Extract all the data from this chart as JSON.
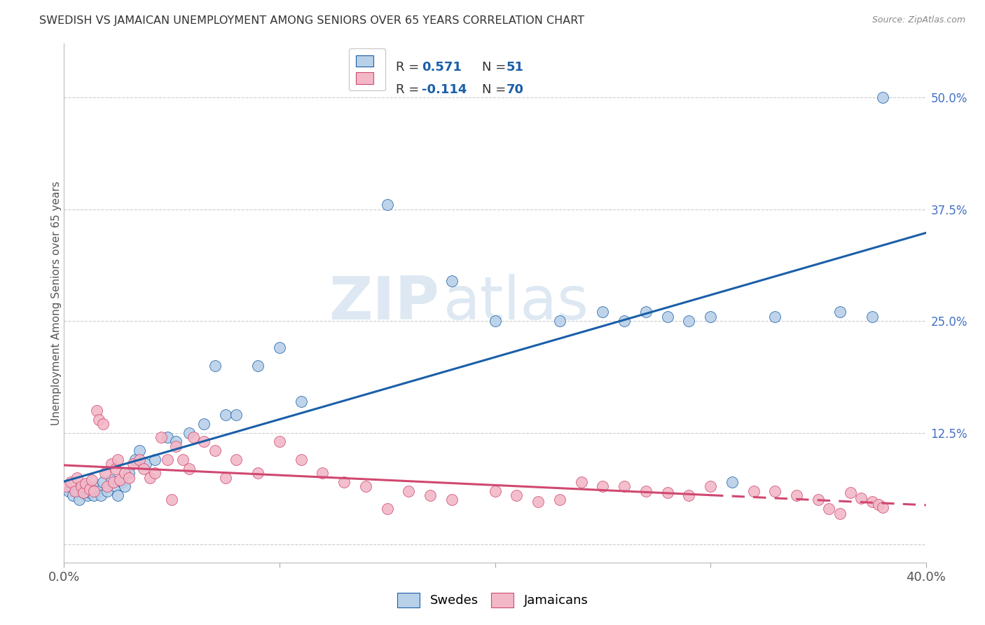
{
  "title": "SWEDISH VS JAMAICAN UNEMPLOYMENT AMONG SENIORS OVER 65 YEARS CORRELATION CHART",
  "source": "Source: ZipAtlas.com",
  "ylabel": "Unemployment Among Seniors over 65 years",
  "xlim": [
    0,
    0.4
  ],
  "ylim": [
    -0.02,
    0.56
  ],
  "right_ytick_vals": [
    0.0,
    0.125,
    0.25,
    0.375,
    0.5
  ],
  "right_yticklabels": [
    "",
    "12.5%",
    "25.0%",
    "37.5%",
    "50.0%"
  ],
  "legend_r_blue": "0.571",
  "legend_n_blue": "51",
  "legend_r_pink": "-0.114",
  "legend_n_pink": "70",
  "swedes_color": "#b8d0e8",
  "jamaicans_color": "#f2b8c8",
  "trend_blue": "#1a5fa8",
  "trend_pink": "#d04870",
  "watermark_zip": "ZIP",
  "watermark_atlas": "atlas",
  "swedes_x": [
    0.002,
    0.004,
    0.006,
    0.007,
    0.008,
    0.009,
    0.01,
    0.011,
    0.012,
    0.013,
    0.014,
    0.015,
    0.016,
    0.017,
    0.018,
    0.02,
    0.022,
    0.024,
    0.025,
    0.027,
    0.028,
    0.03,
    0.033,
    0.035,
    0.038,
    0.042,
    0.048,
    0.052,
    0.058,
    0.065,
    0.07,
    0.075,
    0.08,
    0.09,
    0.1,
    0.11,
    0.15,
    0.18,
    0.2,
    0.23,
    0.25,
    0.26,
    0.27,
    0.28,
    0.29,
    0.3,
    0.31,
    0.33,
    0.36,
    0.375,
    0.38
  ],
  "swedes_y": [
    0.06,
    0.055,
    0.06,
    0.05,
    0.062,
    0.058,
    0.065,
    0.055,
    0.058,
    0.062,
    0.055,
    0.065,
    0.06,
    0.055,
    0.07,
    0.06,
    0.072,
    0.065,
    0.055,
    0.07,
    0.065,
    0.08,
    0.095,
    0.105,
    0.09,
    0.095,
    0.12,
    0.115,
    0.125,
    0.135,
    0.2,
    0.145,
    0.145,
    0.2,
    0.22,
    0.16,
    0.38,
    0.295,
    0.25,
    0.25,
    0.26,
    0.25,
    0.26,
    0.255,
    0.25,
    0.255,
    0.07,
    0.255,
    0.26,
    0.255,
    0.5
  ],
  "jamaicans_x": [
    0.001,
    0.003,
    0.005,
    0.006,
    0.008,
    0.009,
    0.01,
    0.012,
    0.013,
    0.014,
    0.015,
    0.016,
    0.018,
    0.019,
    0.02,
    0.022,
    0.023,
    0.024,
    0.025,
    0.026,
    0.028,
    0.03,
    0.032,
    0.035,
    0.037,
    0.04,
    0.042,
    0.045,
    0.048,
    0.05,
    0.052,
    0.055,
    0.058,
    0.06,
    0.065,
    0.07,
    0.075,
    0.08,
    0.09,
    0.1,
    0.11,
    0.12,
    0.13,
    0.14,
    0.15,
    0.16,
    0.17,
    0.18,
    0.2,
    0.21,
    0.22,
    0.23,
    0.24,
    0.25,
    0.26,
    0.27,
    0.28,
    0.29,
    0.3,
    0.32,
    0.33,
    0.34,
    0.35,
    0.355,
    0.36,
    0.365,
    0.37,
    0.375,
    0.378,
    0.38
  ],
  "jamaicans_y": [
    0.065,
    0.07,
    0.06,
    0.075,
    0.065,
    0.058,
    0.068,
    0.062,
    0.072,
    0.06,
    0.15,
    0.14,
    0.135,
    0.08,
    0.065,
    0.09,
    0.07,
    0.085,
    0.095,
    0.072,
    0.08,
    0.075,
    0.09,
    0.095,
    0.085,
    0.075,
    0.08,
    0.12,
    0.095,
    0.05,
    0.11,
    0.095,
    0.085,
    0.12,
    0.115,
    0.105,
    0.075,
    0.095,
    0.08,
    0.115,
    0.095,
    0.08,
    0.07,
    0.065,
    0.04,
    0.06,
    0.055,
    0.05,
    0.06,
    0.055,
    0.048,
    0.05,
    0.07,
    0.065,
    0.065,
    0.06,
    0.058,
    0.055,
    0.065,
    0.06,
    0.06,
    0.055,
    0.05,
    0.04,
    0.035,
    0.058,
    0.052,
    0.048,
    0.045,
    0.042
  ]
}
